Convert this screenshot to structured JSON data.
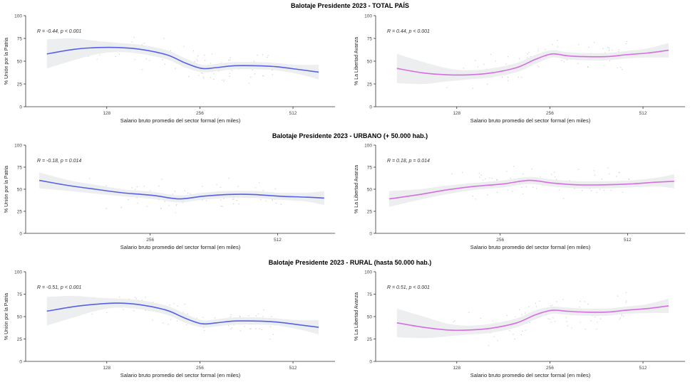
{
  "colors": {
    "blue": "#5560e6",
    "pink": "#d56ee0",
    "band": "#e9ebec",
    "point": "#bdbdbd"
  },
  "sections": [
    {
      "title": "Balotaje Presidente 2023 - TOTAL PAÍS"
    },
    {
      "title": "Balotaje Presidente 2023 - URBANO (+ 50.000 hab.)"
    },
    {
      "title": "Balotaje Presidente 2023 - RURAL (hasta 50.000 hab.)"
    }
  ],
  "chart_data": [
    {
      "type": "line",
      "section": 0,
      "color_key": "blue",
      "xlabel": "Salario bruto promedio del sector formal (en miles)",
      "ylabel": "% Unión por la Patria",
      "annotation": "R = -0.44, p < 0.001",
      "xscale": "log2",
      "xlim": [
        70,
        700
      ],
      "ylim": [
        0,
        100
      ],
      "xticks": [
        128,
        256,
        512
      ],
      "yticks": [
        0,
        25,
        50,
        75,
        100
      ],
      "series": [
        {
          "points": [
            [
              82,
              58
            ],
            [
              100,
              63
            ],
            [
              120,
              65
            ],
            [
              140,
              65
            ],
            [
              165,
              63
            ],
            [
              200,
              57
            ],
            [
              230,
              48
            ],
            [
              260,
              42
            ],
            [
              290,
              43
            ],
            [
              330,
              45
            ],
            [
              390,
              45
            ],
            [
              450,
              44
            ],
            [
              530,
              41
            ],
            [
              620,
              38
            ]
          ]
        }
      ],
      "band": [
        16,
        12,
        7,
        5,
        5,
        5,
        5,
        4,
        4,
        4,
        4,
        4,
        5,
        8
      ]
    },
    {
      "type": "line",
      "section": 0,
      "color_key": "pink",
      "xlabel": "Salario bruto promedio del sector formal (en miles)",
      "ylabel": "% La Libertad Avanza",
      "annotation": "R = 0.44, p < 0.001",
      "xscale": "log2",
      "xlim": [
        70,
        700
      ],
      "ylim": [
        0,
        100
      ],
      "xticks": [
        128,
        256,
        512
      ],
      "yticks": [
        0,
        25,
        50,
        75,
        100
      ],
      "series": [
        {
          "points": [
            [
              82,
              42
            ],
            [
              100,
              37
            ],
            [
              120,
              35
            ],
            [
              140,
              35
            ],
            [
              165,
              37
            ],
            [
              200,
              43
            ],
            [
              230,
              52
            ],
            [
              260,
              58
            ],
            [
              290,
              56
            ],
            [
              330,
              55
            ],
            [
              390,
              55
            ],
            [
              450,
              57
            ],
            [
              530,
              59
            ],
            [
              620,
              62
            ]
          ]
        }
      ],
      "band": [
        16,
        12,
        7,
        5,
        5,
        5,
        5,
        4,
        4,
        4,
        4,
        4,
        5,
        8
      ]
    },
    {
      "type": "line",
      "section": 1,
      "color_key": "blue",
      "xlabel": "Salario bruto promedio del sector formal (en miles)",
      "ylabel": "% Unión por la Patria",
      "annotation": "R = -0.18, p = 0.014",
      "xscale": "log2",
      "xlim": [
        130,
        700
      ],
      "ylim": [
        0,
        100
      ],
      "xticks": [
        256,
        512
      ],
      "yticks": [
        0,
        25,
        50,
        75,
        100
      ],
      "series": [
        {
          "points": [
            [
              140,
              60
            ],
            [
              165,
              54
            ],
            [
              190,
              50
            ],
            [
              220,
              46
            ],
            [
              260,
              43
            ],
            [
              300,
              39
            ],
            [
              340,
              42
            ],
            [
              390,
              44
            ],
            [
              450,
              44
            ],
            [
              520,
              42
            ],
            [
              600,
              41
            ],
            [
              660,
              40
            ]
          ]
        }
      ],
      "band": [
        9,
        6,
        5,
        4,
        4,
        4,
        4,
        4,
        4,
        4,
        5,
        8
      ]
    },
    {
      "type": "line",
      "section": 1,
      "color_key": "pink",
      "xlabel": "Salario bruto promedio del sector formal (en miles)",
      "ylabel": "% La Libertad Avanza",
      "annotation": "R = 0.18, p = 0.014",
      "xscale": "log2",
      "xlim": [
        130,
        700
      ],
      "ylim": [
        0,
        100
      ],
      "xticks": [
        256,
        512
      ],
      "yticks": [
        0,
        25,
        50,
        75,
        100
      ],
      "series": [
        {
          "points": [
            [
              140,
              39
            ],
            [
              165,
              44
            ],
            [
              190,
              49
            ],
            [
              220,
              53
            ],
            [
              260,
              56
            ],
            [
              300,
              60
            ],
            [
              340,
              57
            ],
            [
              390,
              55
            ],
            [
              450,
              55
            ],
            [
              520,
              56
            ],
            [
              600,
              58
            ],
            [
              660,
              59
            ]
          ]
        }
      ],
      "band": [
        9,
        6,
        5,
        4,
        4,
        4,
        4,
        4,
        4,
        4,
        5,
        8
      ]
    },
    {
      "type": "line",
      "section": 2,
      "color_key": "blue",
      "xlabel": "Salario bruto promedio del sector formal (en miles)",
      "ylabel": "% Unión por la Patria",
      "annotation": "R = -0.51, p < 0.001",
      "xscale": "log2",
      "xlim": [
        70,
        700
      ],
      "ylim": [
        0,
        100
      ],
      "xticks": [
        128,
        256,
        512
      ],
      "yticks": [
        0,
        25,
        50,
        75,
        100
      ],
      "series": [
        {
          "points": [
            [
              82,
              56
            ],
            [
              100,
              61
            ],
            [
              120,
              64
            ],
            [
              140,
              65
            ],
            [
              165,
              63
            ],
            [
              200,
              57
            ],
            [
              230,
              48
            ],
            [
              260,
              42
            ],
            [
              290,
              43
            ],
            [
              330,
              45
            ],
            [
              390,
              45
            ],
            [
              450,
              44
            ],
            [
              530,
              41
            ],
            [
              620,
              38
            ]
          ]
        }
      ],
      "band": [
        16,
        12,
        7,
        5,
        5,
        5,
        5,
        4,
        4,
        4,
        4,
        4,
        5,
        8
      ]
    },
    {
      "type": "line",
      "section": 2,
      "color_key": "pink",
      "xlabel": "Salario bruto promedio del sector formal (en miles)",
      "ylabel": "% La Libertad Avanza",
      "annotation": "R = 0.51, p < 0.001",
      "xscale": "log2",
      "xlim": [
        70,
        700
      ],
      "ylim": [
        0,
        100
      ],
      "xticks": [
        128,
        256,
        512
      ],
      "yticks": [
        0,
        25,
        50,
        75,
        100
      ],
      "series": [
        {
          "points": [
            [
              82,
              43
            ],
            [
              100,
              38
            ],
            [
              120,
              35
            ],
            [
              140,
              35
            ],
            [
              165,
              37
            ],
            [
              200,
              43
            ],
            [
              230,
              52
            ],
            [
              260,
              57
            ],
            [
              290,
              56
            ],
            [
              330,
              55
            ],
            [
              390,
              55
            ],
            [
              450,
              57
            ],
            [
              530,
              59
            ],
            [
              620,
              62
            ]
          ]
        }
      ],
      "band": [
        16,
        12,
        7,
        5,
        5,
        5,
        5,
        4,
        4,
        4,
        4,
        4,
        5,
        8
      ]
    }
  ]
}
